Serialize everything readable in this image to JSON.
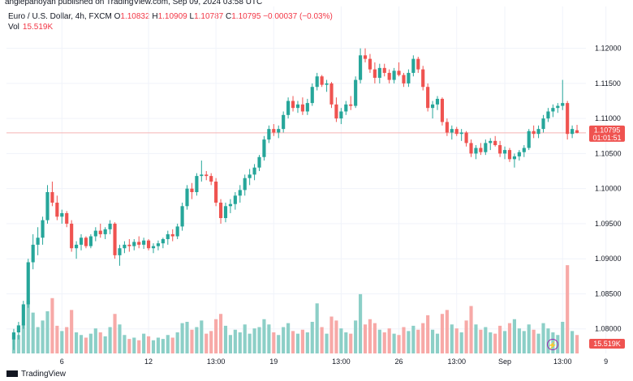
{
  "header": {
    "publish_line": "angiepanoyan published on TradingView.com, Sep 09, 2024 03:58 UTC"
  },
  "legend": {
    "symbol": "Euro / U.S. Dollar, 4h, FXCM",
    "o_label": "O",
    "o_value": "1.10832",
    "h_label": "H",
    "h_value": "1.10909",
    "l_label": "L",
    "l_value": "1.10787",
    "c_label": "C",
    "c_value": "1.10795",
    "change": "−0.00037 (−0.03%)",
    "vol_label": "Vol",
    "vol_value": "15.519K"
  },
  "footer": {
    "logo_text": "TradingView"
  },
  "colors": {
    "up": "#26a69a",
    "down": "#ef5350",
    "vol_up": "#8ccfc7",
    "vol_down": "#f7a9a7",
    "grid": "#f0f3fa",
    "price_line": "#f5b4b4",
    "accent_purple": "#9c27b0"
  },
  "chart_data": {
    "type": "candlestick",
    "symbol": "Euro / U.S. Dollar",
    "timeframe": "4h",
    "y_ticks": [
      "1.12000",
      "1.11500",
      "1.11000",
      "1.10500",
      "1.10000",
      "1.09500",
      "1.09000",
      "1.08500",
      "1.08000"
    ],
    "x_ticks": [
      "6",
      "12",
      "13:00",
      "19",
      "13:00",
      "26",
      "13:00",
      "Sep",
      "13:00",
      "9"
    ],
    "ylim": [
      1.0765,
      1.1225
    ],
    "last_price": "1.10795",
    "countdown": "01:01:51",
    "last_volume_label": "15.519K",
    "grid": true,
    "candles": [
      [
        1.0785,
        1.08,
        1.077,
        1.0795,
        1.5
      ],
      [
        1.0795,
        1.081,
        1.0785,
        1.0805,
        1.4
      ],
      [
        1.0805,
        1.084,
        1.08,
        1.0835,
        2.2
      ],
      [
        1.0835,
        1.09,
        1.083,
        1.0895,
        4.0
      ],
      [
        1.0895,
        1.0935,
        1.0885,
        1.092,
        3.1
      ],
      [
        1.092,
        1.0945,
        1.0905,
        1.093,
        2.0
      ],
      [
        1.093,
        1.096,
        1.092,
        1.0955,
        2.5
      ],
      [
        1.0955,
        1.1005,
        1.095,
        1.0995,
        3.2
      ],
      [
        1.0995,
        1.101,
        1.0975,
        1.098,
        4.2
      ],
      [
        1.098,
        1.099,
        1.0955,
        1.096,
        2.1
      ],
      [
        1.096,
        1.097,
        1.095,
        1.0965,
        1.7
      ],
      [
        1.0965,
        1.0968,
        1.0945,
        1.095,
        2.0
      ],
      [
        1.095,
        1.0955,
        1.091,
        1.0915,
        3.3
      ],
      [
        1.0915,
        1.0925,
        1.09,
        1.092,
        1.6
      ],
      [
        1.092,
        1.0935,
        1.0912,
        1.093,
        1.4
      ],
      [
        1.093,
        1.0932,
        1.0915,
        1.0918,
        1.2
      ],
      [
        1.0918,
        1.0935,
        1.0915,
        1.0932,
        1.5
      ],
      [
        1.0932,
        1.0945,
        1.0925,
        1.094,
        1.9
      ],
      [
        1.094,
        1.095,
        1.093,
        1.0935,
        1.6
      ],
      [
        1.0935,
        1.0945,
        1.0928,
        1.0942,
        1.3
      ],
      [
        1.0942,
        1.0955,
        1.0935,
        1.095,
        2.0
      ],
      [
        1.095,
        1.0952,
        1.09,
        1.0905,
        3.0
      ],
      [
        1.0905,
        1.092,
        1.089,
        1.0915,
        2.2
      ],
      [
        1.0915,
        1.0925,
        1.0908,
        1.092,
        1.4
      ],
      [
        1.092,
        1.0928,
        1.091,
        1.0918,
        1.1
      ],
      [
        1.0918,
        1.0928,
        1.0912,
        1.0924,
        1.2
      ],
      [
        1.0924,
        1.0932,
        1.0915,
        1.092,
        1.0
      ],
      [
        1.092,
        1.093,
        1.0914,
        1.0926,
        1.5
      ],
      [
        1.0926,
        1.0928,
        1.0912,
        1.0915,
        1.3
      ],
      [
        1.0915,
        1.0922,
        1.0908,
        1.0918,
        1.0
      ],
      [
        1.0918,
        1.0926,
        1.0912,
        1.0922,
        1.2
      ],
      [
        1.0922,
        1.093,
        1.0915,
        1.0928,
        1.1
      ],
      [
        1.0928,
        1.094,
        1.092,
        1.0935,
        1.4
      ],
      [
        1.0935,
        1.0942,
        1.0925,
        1.0932,
        1.2
      ],
      [
        1.0932,
        1.095,
        1.0928,
        1.0946,
        1.6
      ],
      [
        1.0946,
        1.098,
        1.094,
        1.0975,
        2.3
      ],
      [
        1.0975,
        1.1005,
        1.097,
        1.1,
        2.4
      ],
      [
        1.1,
        1.1008,
        1.0985,
        1.0995,
        1.8
      ],
      [
        1.0995,
        1.1022,
        1.099,
        1.1018,
        2.0
      ],
      [
        1.1018,
        1.104,
        1.101,
        1.102,
        2.5
      ],
      [
        1.102,
        1.1025,
        1.1012,
        1.1018,
        1.5
      ],
      [
        1.1018,
        1.1022,
        1.1005,
        1.101,
        1.7
      ],
      [
        1.101,
        1.1015,
        1.0975,
        1.098,
        2.6
      ],
      [
        1.098,
        1.0985,
        1.095,
        1.0958,
        3.0
      ],
      [
        1.0958,
        1.098,
        1.0952,
        1.0975,
        2.1
      ],
      [
        1.0975,
        1.0985,
        1.0965,
        1.0978,
        1.4
      ],
      [
        1.0978,
        1.0995,
        1.097,
        1.099,
        1.8
      ],
      [
        1.099,
        1.1005,
        1.098,
        1.0998,
        1.6
      ],
      [
        1.0998,
        1.102,
        1.099,
        1.1015,
        2.2
      ],
      [
        1.1015,
        1.1028,
        1.1005,
        1.102,
        1.5
      ],
      [
        1.102,
        1.1035,
        1.1012,
        1.103,
        1.9
      ],
      [
        1.103,
        1.1048,
        1.1025,
        1.1045,
        2.0
      ],
      [
        1.1045,
        1.1075,
        1.104,
        1.107,
        2.6
      ],
      [
        1.107,
        1.109,
        1.1065,
        1.1085,
        2.2
      ],
      [
        1.1085,
        1.1092,
        1.1075,
        1.108,
        1.6
      ],
      [
        1.108,
        1.109,
        1.1072,
        1.1085,
        1.4
      ],
      [
        1.1085,
        1.111,
        1.108,
        1.1105,
        2.0
      ],
      [
        1.1105,
        1.113,
        1.11,
        1.1125,
        2.3
      ],
      [
        1.1125,
        1.1132,
        1.111,
        1.1115,
        1.7
      ],
      [
        1.1115,
        1.1125,
        1.1108,
        1.112,
        1.5
      ],
      [
        1.112,
        1.113,
        1.1105,
        1.111,
        1.8
      ],
      [
        1.111,
        1.1128,
        1.1105,
        1.1122,
        1.6
      ],
      [
        1.1122,
        1.115,
        1.1118,
        1.1145,
        2.4
      ],
      [
        1.1145,
        1.1165,
        1.114,
        1.116,
        3.8
      ],
      [
        1.116,
        1.1162,
        1.1145,
        1.1148,
        2.0
      ],
      [
        1.1148,
        1.1155,
        1.1138,
        1.115,
        1.5
      ],
      [
        1.115,
        1.1152,
        1.1115,
        1.112,
        2.8
      ],
      [
        1.112,
        1.113,
        1.1095,
        1.11,
        2.5
      ],
      [
        1.11,
        1.1115,
        1.1092,
        1.111,
        1.9
      ],
      [
        1.111,
        1.1125,
        1.1105,
        1.112,
        1.6
      ],
      [
        1.112,
        1.1132,
        1.1112,
        1.1118,
        1.5
      ],
      [
        1.1118,
        1.116,
        1.1115,
        1.1155,
        2.5
      ],
      [
        1.1155,
        1.12,
        1.115,
        1.119,
        4.5
      ],
      [
        1.119,
        1.12,
        1.118,
        1.1185,
        2.2
      ],
      [
        1.1185,
        1.1192,
        1.1165,
        1.117,
        2.6
      ],
      [
        1.117,
        1.118,
        1.115,
        1.1158,
        2.3
      ],
      [
        1.1158,
        1.1178,
        1.115,
        1.1172,
        1.8
      ],
      [
        1.1172,
        1.1178,
        1.116,
        1.1165,
        1.6
      ],
      [
        1.1165,
        1.117,
        1.115,
        1.1155,
        1.9
      ],
      [
        1.1155,
        1.1172,
        1.115,
        1.1168,
        1.5
      ],
      [
        1.1168,
        1.118,
        1.116,
        1.1162,
        1.4
      ],
      [
        1.1162,
        1.1165,
        1.1145,
        1.115,
        2.0
      ],
      [
        1.115,
        1.117,
        1.1145,
        1.1165,
        1.7
      ],
      [
        1.1165,
        1.119,
        1.116,
        1.1185,
        2.1
      ],
      [
        1.1185,
        1.1188,
        1.1165,
        1.117,
        1.8
      ],
      [
        1.117,
        1.1175,
        1.114,
        1.1145,
        2.3
      ],
      [
        1.1145,
        1.115,
        1.111,
        1.1115,
        2.9
      ],
      [
        1.1115,
        1.1125,
        1.11,
        1.112,
        1.8
      ],
      [
        1.112,
        1.1132,
        1.1112,
        1.1128,
        1.5
      ],
      [
        1.1128,
        1.113,
        1.109,
        1.1095,
        3.0
      ],
      [
        1.1095,
        1.11,
        1.1075,
        1.108,
        3.3
      ],
      [
        1.108,
        1.109,
        1.107,
        1.1085,
        2.2
      ],
      [
        1.1085,
        1.1088,
        1.1075,
        1.1078,
        1.9
      ],
      [
        1.1078,
        1.1085,
        1.1068,
        1.108,
        1.6
      ],
      [
        1.108,
        1.1082,
        1.106,
        1.1065,
        2.5
      ],
      [
        1.1065,
        1.107,
        1.1045,
        1.105,
        3.6
      ],
      [
        1.105,
        1.1062,
        1.1042,
        1.1058,
        2.2
      ],
      [
        1.1058,
        1.1065,
        1.1048,
        1.1052,
        1.8
      ],
      [
        1.1052,
        1.107,
        1.1048,
        1.1065,
        2.0
      ],
      [
        1.1065,
        1.1072,
        1.1055,
        1.1068,
        1.6
      ],
      [
        1.1068,
        1.1075,
        1.106,
        1.1062,
        1.5
      ],
      [
        1.1062,
        1.1068,
        1.1045,
        1.105,
        2.1
      ],
      [
        1.105,
        1.106,
        1.1042,
        1.1055,
        1.7
      ],
      [
        1.1055,
        1.1058,
        1.1038,
        1.1042,
        2.3
      ],
      [
        1.1042,
        1.105,
        1.103,
        1.1046,
        2.6
      ],
      [
        1.1046,
        1.1055,
        1.104,
        1.1052,
        1.9
      ],
      [
        1.1052,
        1.1062,
        1.1045,
        1.1058,
        1.7
      ],
      [
        1.1058,
        1.1085,
        1.1055,
        1.1082,
        2.2
      ],
      [
        1.1082,
        1.109,
        1.1072,
        1.1078,
        1.8
      ],
      [
        1.1078,
        1.109,
        1.1072,
        1.1085,
        1.5
      ],
      [
        1.1085,
        1.1105,
        1.108,
        1.11,
        2.3
      ],
      [
        1.11,
        1.1115,
        1.1095,
        1.111,
        1.9
      ],
      [
        1.111,
        1.112,
        1.1102,
        1.1115,
        1.6
      ],
      [
        1.1115,
        1.1122,
        1.1108,
        1.1118,
        1.4
      ],
      [
        1.1118,
        1.1155,
        1.1112,
        1.1122,
        2.4
      ],
      [
        1.1122,
        1.1125,
        1.107,
        1.1078,
        6.7
      ],
      [
        1.1078,
        1.109,
        1.1072,
        1.1085,
        1.7
      ],
      [
        1.10832,
        1.10909,
        1.10787,
        1.10795,
        1.4
      ]
    ]
  }
}
